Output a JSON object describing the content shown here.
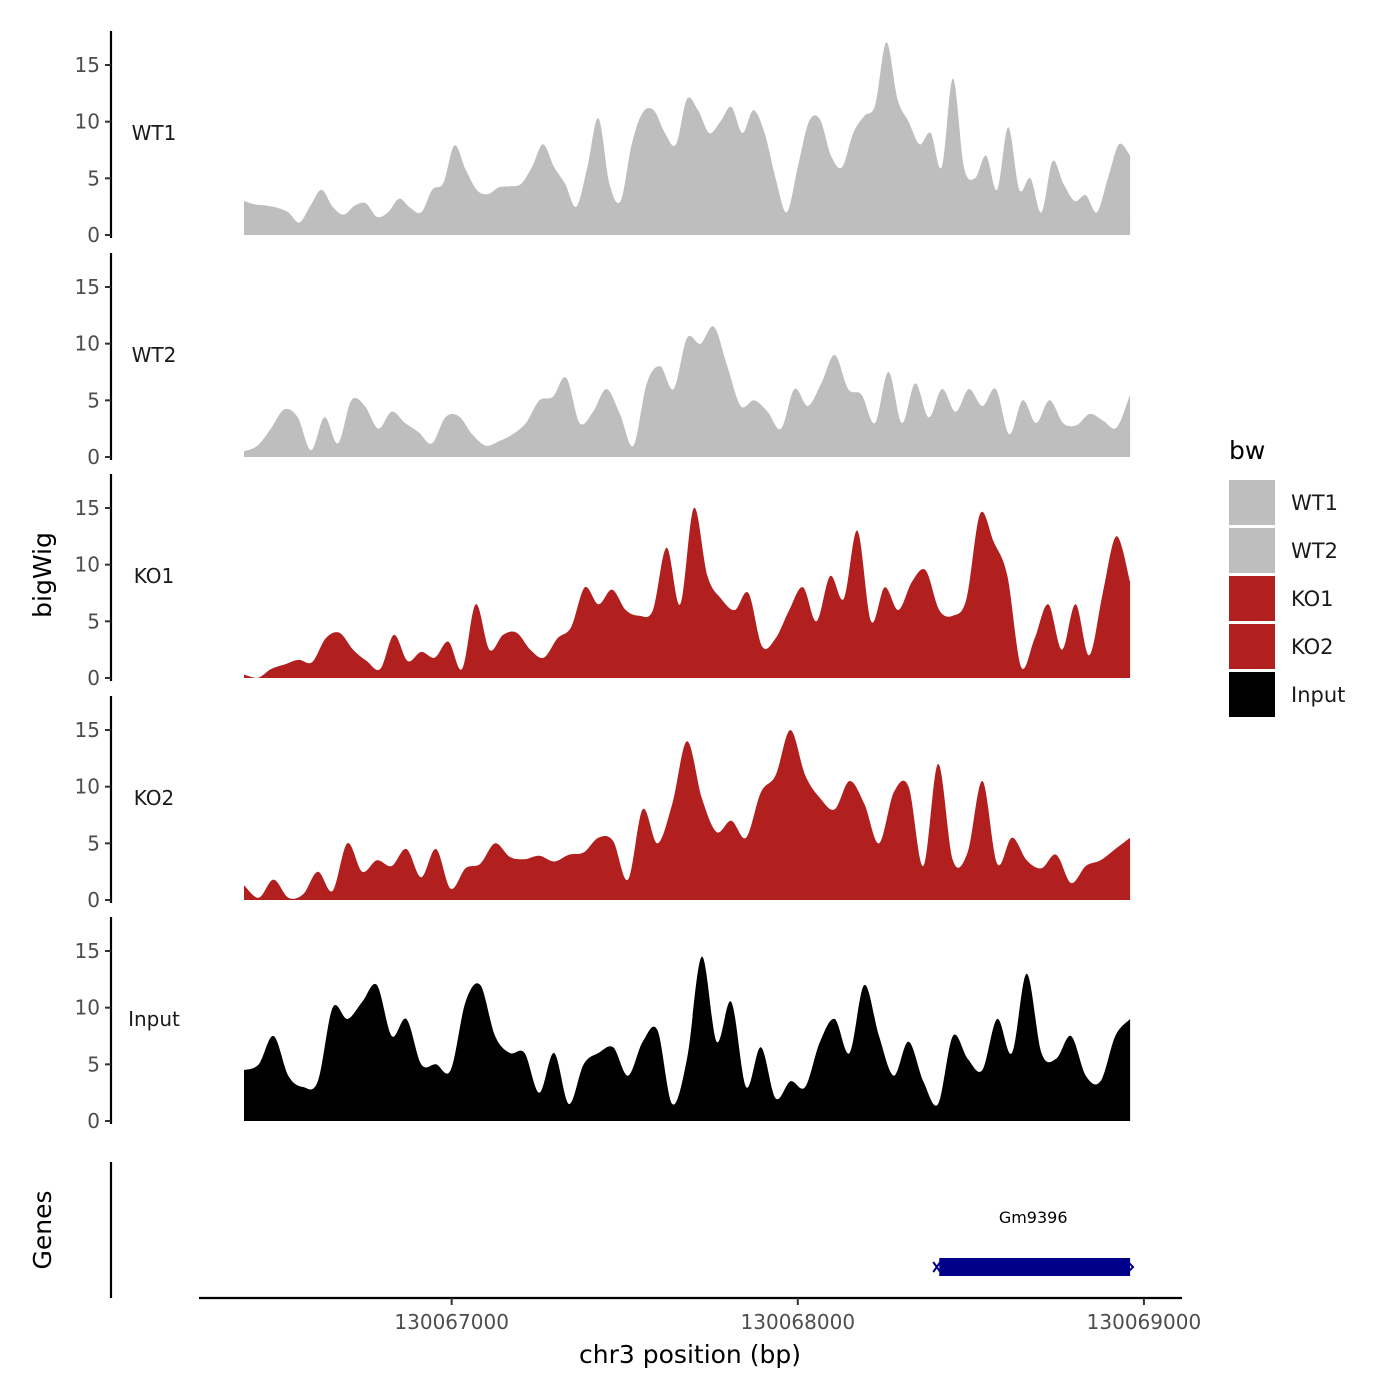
{
  "chart_data": {
    "type": "area",
    "title": "",
    "ylabel": "bigWig",
    "xlabel": "chr3 position (bp)",
    "ylim": [
      0,
      18
    ],
    "yticks": [
      0,
      5,
      10,
      15
    ],
    "xlim": [
      130066270,
      130069110
    ],
    "xticks": [
      130067000,
      130068000,
      130069000
    ],
    "x_tick_labels": [
      "130067000",
      "130068000",
      "130069000"
    ],
    "track_range": [
      130066400,
      130068960
    ],
    "legend": {
      "title": "bw",
      "placement": "right",
      "entries": [
        {
          "label": "WT1",
          "color": "#bebebe"
        },
        {
          "label": "WT2",
          "color": "#bebebe"
        },
        {
          "label": "KO1",
          "color": "#b21f1f"
        },
        {
          "label": "KO2",
          "color": "#b21f1f"
        },
        {
          "label": "Input",
          "color": "#000000"
        }
      ]
    },
    "series": [
      {
        "name": "WT1",
        "color": "#bebebe",
        "values": [
          3.0,
          2.7,
          2.6,
          2.4,
          2.0,
          1.1,
          2.6,
          4.0,
          2.5,
          1.8,
          2.6,
          2.8,
          1.6,
          2.0,
          3.2,
          2.4,
          2.0,
          4.0,
          4.6,
          7.9,
          5.8,
          4.0,
          3.6,
          4.2,
          4.3,
          4.5,
          6.0,
          8.0,
          6.0,
          4.5,
          2.5,
          6.0,
          10.3,
          4.5,
          3.0,
          8.0,
          10.8,
          11.0,
          9.0,
          8.0,
          12.0,
          11.0,
          9.0,
          10.0,
          11.3,
          9.0,
          11.0,
          9.0,
          5.0,
          2.0,
          6.0,
          10.0,
          10.2,
          7.0,
          6.0,
          9.0,
          10.5,
          11.5,
          17.0,
          12.0,
          10.0,
          8.0,
          9.0,
          6.0,
          13.8,
          6.0,
          5.0,
          7.0,
          4.0,
          9.5,
          4.0,
          5.0,
          2.0,
          6.5,
          4.5,
          3.0,
          3.5,
          2.0,
          5.0,
          8.0,
          7.0
        ]
      },
      {
        "name": "WT2",
        "color": "#bebebe",
        "values": [
          0.5,
          1.0,
          2.5,
          4.2,
          3.5,
          0.6,
          3.5,
          1.2,
          5.0,
          4.5,
          2.5,
          4.0,
          3.0,
          2.2,
          1.2,
          3.5,
          3.6,
          2.0,
          1.0,
          1.4,
          2.0,
          3.0,
          5.0,
          5.3,
          7.0,
          3.0,
          4.0,
          6.0,
          3.8,
          1.0,
          6.5,
          8.0,
          6.0,
          10.5,
          10.0,
          11.5,
          8.0,
          4.5,
          5.0,
          4.0,
          2.5,
          6.0,
          4.5,
          6.5,
          9.0,
          6.0,
          5.5,
          3.0,
          7.5,
          3.0,
          6.5,
          3.5,
          6.0,
          4.0,
          6.0,
          4.5,
          6.0,
          2.0,
          5.0,
          3.0,
          5.0,
          3.0,
          2.8,
          3.8,
          3.2,
          2.6,
          5.5
        ]
      },
      {
        "name": "KO1",
        "color": "#b21f1f",
        "values": [
          0.3,
          0.0,
          0.8,
          1.2,
          1.6,
          1.4,
          3.5,
          4.0,
          2.5,
          1.5,
          0.8,
          3.8,
          1.5,
          2.3,
          1.8,
          3.2,
          0.8,
          6.5,
          2.5,
          3.8,
          4.0,
          2.5,
          1.8,
          3.5,
          4.5,
          8.0,
          6.5,
          7.8,
          6.0,
          5.5,
          6.0,
          11.5,
          6.5,
          15.0,
          9.0,
          7.0,
          6.0,
          7.5,
          2.8,
          3.5,
          6.0,
          8.0,
          5.0,
          9.0,
          7.0,
          13.0,
          5.0,
          8.0,
          6.0,
          8.5,
          9.5,
          6.0,
          5.5,
          7.0,
          14.5,
          12.0,
          9.0,
          1.0,
          3.5,
          6.5,
          2.5,
          6.5,
          2.0,
          7.5,
          12.5,
          8.5
        ]
      },
      {
        "name": "KO2",
        "color": "#b21f1f",
        "values": [
          1.3,
          0.2,
          1.8,
          0.2,
          0.5,
          2.5,
          0.8,
          5.0,
          2.5,
          3.5,
          3.0,
          4.5,
          2.0,
          4.5,
          1.0,
          2.8,
          3.2,
          5.0,
          3.8,
          3.6,
          3.9,
          3.4,
          4.0,
          4.2,
          5.5,
          5.2,
          1.8,
          8.0,
          5.0,
          8.5,
          14.0,
          9.0,
          6.0,
          7.0,
          5.5,
          9.5,
          11.0,
          15.0,
          11.0,
          9.0,
          8.0,
          10.5,
          8.5,
          5.0,
          9.5,
          10.0,
          3.0,
          12.0,
          3.5,
          4.2,
          10.5,
          3.2,
          5.5,
          3.5,
          2.8,
          4.0,
          1.5,
          3.0,
          3.5,
          4.5,
          5.5
        ]
      },
      {
        "name": "Input",
        "color": "#000000",
        "values": [
          4.5,
          5.0,
          7.5,
          4.0,
          3.0,
          3.5,
          10.0,
          9.0,
          10.5,
          12.0,
          7.5,
          9.0,
          5.0,
          5.0,
          4.5,
          10.5,
          12.0,
          7.5,
          6.0,
          6.0,
          2.5,
          6.0,
          1.5,
          5.0,
          6.0,
          6.5,
          4.0,
          7.0,
          8.0,
          1.5,
          5.5,
          14.5,
          7.0,
          10.5,
          3.0,
          6.5,
          2.0,
          3.5,
          3.0,
          7.0,
          9.0,
          6.0,
          12.0,
          7.5,
          4.0,
          7.0,
          3.5,
          1.5,
          7.5,
          5.5,
          4.5,
          9.0,
          6.0,
          13.0,
          6.0,
          5.5,
          7.5,
          4.0,
          3.5,
          7.5,
          9.0
        ]
      }
    ],
    "genes": [
      {
        "name": "Gm9396",
        "start": 130068400,
        "end": 130068960,
        "strand": "-",
        "color": "#00008b"
      }
    ],
    "genes_label": "Genes"
  }
}
